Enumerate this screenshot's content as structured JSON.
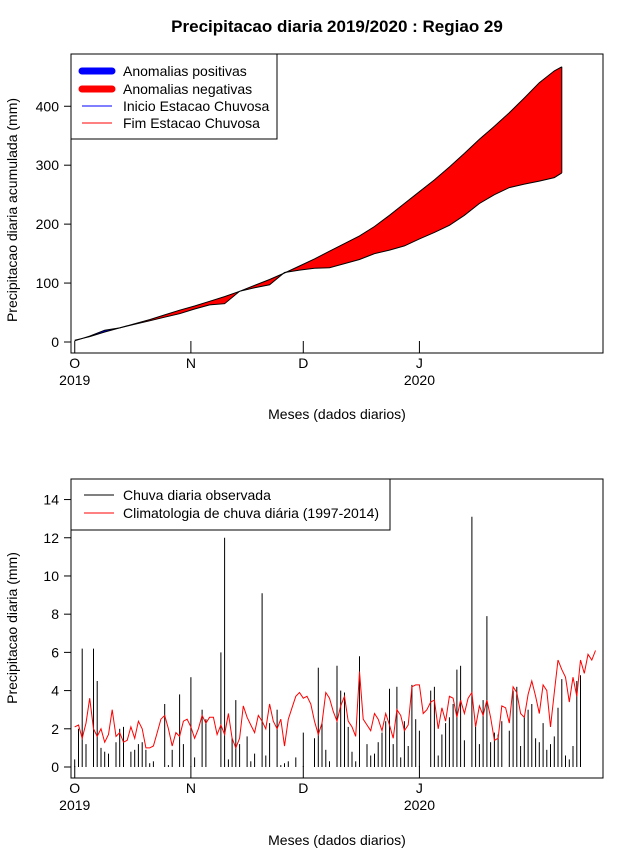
{
  "chart_data": [
    {
      "type": "area",
      "title": "Precipitacao diaria 2019/2020 : Regiao 29",
      "xlabel": "Meses (dados diarios)",
      "ylabel": "Precipitacao diaria acumulada (mm)",
      "xlim": [
        "2019-09-30",
        "2020-02-19"
      ],
      "ylim": [
        0,
        470
      ],
      "y_ticks": [
        0,
        100,
        200,
        300,
        400
      ],
      "x_ticks": [
        {
          "date": "2019-10-01",
          "label": "O",
          "year": "2019"
        },
        {
          "date": "2019-11-01",
          "label": "N",
          "year": ""
        },
        {
          "date": "2019-12-01",
          "label": "D",
          "year": ""
        },
        {
          "date": "2020-01-01",
          "label": "J",
          "year": "2020"
        }
      ],
      "legend": {
        "position": "top-left",
        "entries": [
          {
            "label": "Anomalias positivas",
            "color": "#0000ff",
            "style": "thick"
          },
          {
            "label": "Anomalias negativas",
            "color": "#ff0000",
            "style": "thick"
          },
          {
            "label": "Inicio Estacao Chuvosa",
            "color": "#0000ff",
            "style": "thin"
          },
          {
            "label": "Fim Estacao Chuvosa",
            "color": "#ff0000",
            "style": "thin"
          }
        ]
      },
      "positive_color": "#0000ff",
      "negative_color": "#ff0000",
      "series": [
        {
          "name": "observed_cumulative",
          "x": [
            "2019-10-01",
            "2019-10-05",
            "2019-10-09",
            "2019-10-13",
            "2019-10-17",
            "2019-10-21",
            "2019-10-25",
            "2019-10-29",
            "2019-11-02",
            "2019-11-06",
            "2019-11-10",
            "2019-11-14",
            "2019-11-18",
            "2019-11-22",
            "2019-11-26",
            "2019-11-30",
            "2019-12-04",
            "2019-12-08",
            "2019-12-12",
            "2019-12-16",
            "2019-12-20",
            "2019-12-24",
            "2019-12-28",
            "2020-01-01",
            "2020-01-05",
            "2020-01-09",
            "2020-01-13",
            "2020-01-17",
            "2020-01-21",
            "2020-01-25",
            "2020-01-29",
            "2020-02-02",
            "2020-02-06",
            "2020-02-08"
          ],
          "values": [
            2,
            10,
            20,
            24,
            30,
            36,
            42,
            48,
            56,
            63,
            65,
            86,
            92,
            97,
            118,
            122,
            125,
            126,
            133,
            140,
            150,
            156,
            163,
            175,
            186,
            198,
            215,
            235,
            250,
            262,
            268,
            273,
            279,
            287
          ]
        },
        {
          "name": "climatology_cumulative",
          "x": [
            "2019-10-01",
            "2019-10-05",
            "2019-10-09",
            "2019-10-13",
            "2019-10-17",
            "2019-10-21",
            "2019-10-25",
            "2019-10-29",
            "2019-11-02",
            "2019-11-06",
            "2019-11-10",
            "2019-11-14",
            "2019-11-18",
            "2019-11-22",
            "2019-11-26",
            "2019-11-30",
            "2019-12-04",
            "2019-12-08",
            "2019-12-12",
            "2019-12-16",
            "2019-12-20",
            "2019-12-24",
            "2019-12-28",
            "2020-01-01",
            "2020-01-05",
            "2020-01-09",
            "2020-01-13",
            "2020-01-17",
            "2020-01-21",
            "2020-01-25",
            "2020-01-29",
            "2020-02-02",
            "2020-02-06",
            "2020-02-08"
          ],
          "values": [
            3,
            9,
            17,
            24,
            31,
            38,
            46,
            54,
            61,
            69,
            77,
            86,
            96,
            106,
            117,
            129,
            141,
            154,
            167,
            180,
            196,
            215,
            235,
            255,
            275,
            297,
            320,
            344,
            366,
            389,
            414,
            440,
            460,
            467
          ]
        }
      ]
    },
    {
      "type": "bar",
      "xlabel": "Meses (dados diarios)",
      "ylabel": "Precipitacao diaria (mm)",
      "xlim": [
        "2019-09-30",
        "2020-02-19"
      ],
      "ylim": [
        0,
        14.5
      ],
      "y_ticks": [
        0,
        2,
        4,
        6,
        8,
        10,
        12,
        14
      ],
      "x_ticks": [
        {
          "date": "2019-10-01",
          "label": "O",
          "year": "2019"
        },
        {
          "date": "2019-11-01",
          "label": "N",
          "year": ""
        },
        {
          "date": "2019-12-01",
          "label": "D",
          "year": ""
        },
        {
          "date": "2020-01-01",
          "label": "J",
          "year": "2020"
        }
      ],
      "legend": {
        "position": "top-left",
        "entries": [
          {
            "label": "Chuva diaria observada",
            "color": "#000000"
          },
          {
            "label": "Climatologia de chuva diária (1997-2014)",
            "color": "#ff0000"
          }
        ]
      },
      "series": [
        {
          "name": "Chuva diaria observada",
          "color": "#000000",
          "start_date": "2019-10-01",
          "values": [
            0.4,
            2.0,
            6.2,
            1.2,
            0.0,
            6.2,
            4.5,
            1.0,
            0.8,
            0.7,
            0.0,
            1.3,
            2.0,
            2.1,
            0.0,
            0.8,
            0.9,
            1.2,
            1.3,
            0.9,
            0.2,
            0.3,
            0.0,
            0.0,
            3.3,
            0.1,
            0.9,
            0.0,
            3.8,
            1.2,
            0.0,
            4.7,
            0.5,
            0.0,
            3.0,
            2.5,
            0.0,
            0.0,
            0.0,
            6.0,
            12.0,
            0.4,
            1.5,
            3.5,
            1.2,
            0.0,
            1.6,
            0.3,
            0.7,
            0.0,
            9.1,
            0.6,
            2.3,
            0.0,
            3.0,
            0.1,
            0.2,
            0.3,
            0.0,
            0.5,
            0.0,
            1.8,
            0.0,
            0.0,
            1.5,
            5.2,
            2.3,
            0.9,
            0.3,
            0.0,
            5.3,
            4.0,
            3.9,
            2.1,
            0.8,
            0.3,
            5.8,
            0.0,
            1.2,
            0.6,
            0.7,
            1.3,
            1.8,
            2.4,
            4.1,
            1.2,
            4.2,
            0.5,
            2.4,
            1.1,
            4.3,
            2.5,
            1.9,
            0.0,
            0.0,
            4.0,
            4.2,
            0.6,
            1.7,
            2.3,
            2.6,
            3.3,
            5.1,
            5.3,
            1.4,
            0.0,
            13.1,
            2.1,
            1.2,
            3.5,
            7.9,
            1.3,
            1.8,
            1.7,
            2.4,
            0.0,
            1.9,
            4.0,
            4.2,
            1.1,
            2.6,
            3.0,
            3.3,
            1.5,
            1.3,
            2.3,
            0.9,
            1.2,
            1.6,
            3.1,
            4.6,
            0.6,
            0.4,
            1.1,
            4.5,
            4.8
          ]
        },
        {
          "name": "Climatologia de chuva diária (1997-2014)",
          "color": "#ff0000",
          "start_date": "2019-10-01",
          "values": [
            2.1,
            2.2,
            1.5,
            2.3,
            3.6,
            2.0,
            1.6,
            2.0,
            1.3,
            1.7,
            3.0,
            1.6,
            1.8,
            1.3,
            1.4,
            2.1,
            1.5,
            2.4,
            2.0,
            1.0,
            1.0,
            1.1,
            1.8,
            2.5,
            2.7,
            2.0,
            1.1,
            1.8,
            1.6,
            2.4,
            2.5,
            2.1,
            1.5,
            2.0,
            2.7,
            2.3,
            2.6,
            2.6,
            1.7,
            2.2,
            1.7,
            2.8,
            1.5,
            1.0,
            1.5,
            3.2,
            2.6,
            2.2,
            1.8,
            2.7,
            2.4,
            2.0,
            3.3,
            2.4,
            2.0,
            2.5,
            1.1,
            2.5,
            3.1,
            3.7,
            3.9,
            3.6,
            3.7,
            3.3,
            2.4,
            1.7,
            2.3,
            3.9,
            3.6,
            2.9,
            2.4,
            3.2,
            3.7,
            2.4,
            2.1,
            1.6,
            5.0,
            2.5,
            2.2,
            1.9,
            2.8,
            2.5,
            1.9,
            2.8,
            2.2,
            1.5,
            3.0,
            2.7,
            1.9,
            2.2,
            4.2,
            4.3,
            4.3,
            2.8,
            3.0,
            3.4,
            3.5,
            2.0,
            3.1,
            2.4,
            3.7,
            3.6,
            2.6,
            3.5,
            2.8,
            3.6,
            3.9,
            2.1,
            3.2,
            2.7,
            3.5,
            2.6,
            1.4,
            1.5,
            3.2,
            3.1,
            2.3,
            4.2,
            3.9,
            2.8,
            2.6,
            3.8,
            4.5,
            3.7,
            2.8,
            4.3,
            4.0,
            2.1,
            3.9,
            5.6,
            5.1,
            4.7,
            3.4,
            4.7,
            3.7,
            5.6,
            4.9,
            5.9,
            5.6,
            6.1
          ]
        }
      ]
    }
  ]
}
